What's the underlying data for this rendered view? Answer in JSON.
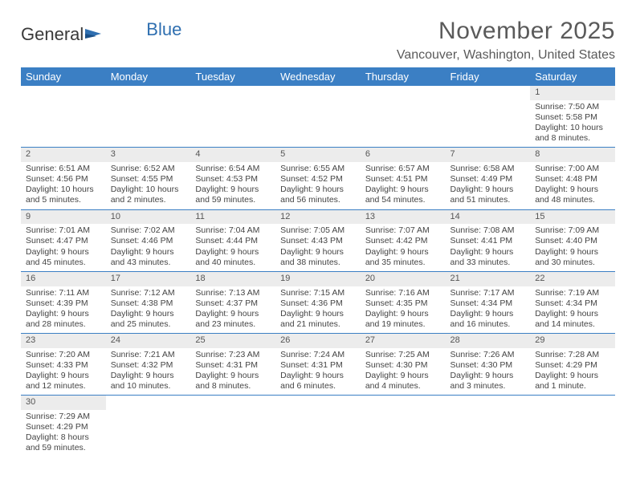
{
  "brand": {
    "part1": "General",
    "part2": "Blue"
  },
  "title": "November 2025",
  "location": "Vancouver, Washington, United States",
  "colors": {
    "header_bg": "#3b7fc4",
    "header_text": "#ffffff",
    "daynum_bg": "#ececec",
    "row_border": "#3b7fc4",
    "body_text": "#444444",
    "title_text": "#5a5a5a",
    "brand_gray": "#3a3a3a",
    "brand_blue": "#2f6fb0",
    "page_bg": "#ffffff"
  },
  "typography": {
    "title_fontsize": 30,
    "location_fontsize": 16,
    "weekday_fontsize": 13,
    "daynum_fontsize": 11,
    "cell_fontsize": 10.5
  },
  "weekdays": [
    "Sunday",
    "Monday",
    "Tuesday",
    "Wednesday",
    "Thursday",
    "Friday",
    "Saturday"
  ],
  "weeks": [
    [
      null,
      null,
      null,
      null,
      null,
      null,
      {
        "n": "1",
        "sr": "Sunrise: 7:50 AM",
        "ss": "Sunset: 5:58 PM",
        "dl": "Daylight: 10 hours and 8 minutes."
      }
    ],
    [
      {
        "n": "2",
        "sr": "Sunrise: 6:51 AM",
        "ss": "Sunset: 4:56 PM",
        "dl": "Daylight: 10 hours and 5 minutes."
      },
      {
        "n": "3",
        "sr": "Sunrise: 6:52 AM",
        "ss": "Sunset: 4:55 PM",
        "dl": "Daylight: 10 hours and 2 minutes."
      },
      {
        "n": "4",
        "sr": "Sunrise: 6:54 AM",
        "ss": "Sunset: 4:53 PM",
        "dl": "Daylight: 9 hours and 59 minutes."
      },
      {
        "n": "5",
        "sr": "Sunrise: 6:55 AM",
        "ss": "Sunset: 4:52 PM",
        "dl": "Daylight: 9 hours and 56 minutes."
      },
      {
        "n": "6",
        "sr": "Sunrise: 6:57 AM",
        "ss": "Sunset: 4:51 PM",
        "dl": "Daylight: 9 hours and 54 minutes."
      },
      {
        "n": "7",
        "sr": "Sunrise: 6:58 AM",
        "ss": "Sunset: 4:49 PM",
        "dl": "Daylight: 9 hours and 51 minutes."
      },
      {
        "n": "8",
        "sr": "Sunrise: 7:00 AM",
        "ss": "Sunset: 4:48 PM",
        "dl": "Daylight: 9 hours and 48 minutes."
      }
    ],
    [
      {
        "n": "9",
        "sr": "Sunrise: 7:01 AM",
        "ss": "Sunset: 4:47 PM",
        "dl": "Daylight: 9 hours and 45 minutes."
      },
      {
        "n": "10",
        "sr": "Sunrise: 7:02 AM",
        "ss": "Sunset: 4:46 PM",
        "dl": "Daylight: 9 hours and 43 minutes."
      },
      {
        "n": "11",
        "sr": "Sunrise: 7:04 AM",
        "ss": "Sunset: 4:44 PM",
        "dl": "Daylight: 9 hours and 40 minutes."
      },
      {
        "n": "12",
        "sr": "Sunrise: 7:05 AM",
        "ss": "Sunset: 4:43 PM",
        "dl": "Daylight: 9 hours and 38 minutes."
      },
      {
        "n": "13",
        "sr": "Sunrise: 7:07 AM",
        "ss": "Sunset: 4:42 PM",
        "dl": "Daylight: 9 hours and 35 minutes."
      },
      {
        "n": "14",
        "sr": "Sunrise: 7:08 AM",
        "ss": "Sunset: 4:41 PM",
        "dl": "Daylight: 9 hours and 33 minutes."
      },
      {
        "n": "15",
        "sr": "Sunrise: 7:09 AM",
        "ss": "Sunset: 4:40 PM",
        "dl": "Daylight: 9 hours and 30 minutes."
      }
    ],
    [
      {
        "n": "16",
        "sr": "Sunrise: 7:11 AM",
        "ss": "Sunset: 4:39 PM",
        "dl": "Daylight: 9 hours and 28 minutes."
      },
      {
        "n": "17",
        "sr": "Sunrise: 7:12 AM",
        "ss": "Sunset: 4:38 PM",
        "dl": "Daylight: 9 hours and 25 minutes."
      },
      {
        "n": "18",
        "sr": "Sunrise: 7:13 AM",
        "ss": "Sunset: 4:37 PM",
        "dl": "Daylight: 9 hours and 23 minutes."
      },
      {
        "n": "19",
        "sr": "Sunrise: 7:15 AM",
        "ss": "Sunset: 4:36 PM",
        "dl": "Daylight: 9 hours and 21 minutes."
      },
      {
        "n": "20",
        "sr": "Sunrise: 7:16 AM",
        "ss": "Sunset: 4:35 PM",
        "dl": "Daylight: 9 hours and 19 minutes."
      },
      {
        "n": "21",
        "sr": "Sunrise: 7:17 AM",
        "ss": "Sunset: 4:34 PM",
        "dl": "Daylight: 9 hours and 16 minutes."
      },
      {
        "n": "22",
        "sr": "Sunrise: 7:19 AM",
        "ss": "Sunset: 4:34 PM",
        "dl": "Daylight: 9 hours and 14 minutes."
      }
    ],
    [
      {
        "n": "23",
        "sr": "Sunrise: 7:20 AM",
        "ss": "Sunset: 4:33 PM",
        "dl": "Daylight: 9 hours and 12 minutes."
      },
      {
        "n": "24",
        "sr": "Sunrise: 7:21 AM",
        "ss": "Sunset: 4:32 PM",
        "dl": "Daylight: 9 hours and 10 minutes."
      },
      {
        "n": "25",
        "sr": "Sunrise: 7:23 AM",
        "ss": "Sunset: 4:31 PM",
        "dl": "Daylight: 9 hours and 8 minutes."
      },
      {
        "n": "26",
        "sr": "Sunrise: 7:24 AM",
        "ss": "Sunset: 4:31 PM",
        "dl": "Daylight: 9 hours and 6 minutes."
      },
      {
        "n": "27",
        "sr": "Sunrise: 7:25 AM",
        "ss": "Sunset: 4:30 PM",
        "dl": "Daylight: 9 hours and 4 minutes."
      },
      {
        "n": "28",
        "sr": "Sunrise: 7:26 AM",
        "ss": "Sunset: 4:30 PM",
        "dl": "Daylight: 9 hours and 3 minutes."
      },
      {
        "n": "29",
        "sr": "Sunrise: 7:28 AM",
        "ss": "Sunset: 4:29 PM",
        "dl": "Daylight: 9 hours and 1 minute."
      }
    ],
    [
      {
        "n": "30",
        "sr": "Sunrise: 7:29 AM",
        "ss": "Sunset: 4:29 PM",
        "dl": "Daylight: 8 hours and 59 minutes."
      },
      null,
      null,
      null,
      null,
      null,
      null
    ]
  ]
}
